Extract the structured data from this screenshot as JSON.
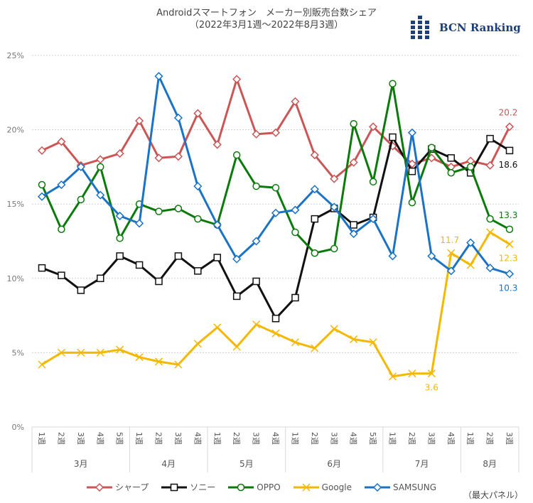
{
  "header": {
    "title_line1": "Androidスマートフォン　メーカー別販売台数シェア",
    "title_line2": "（2022年3月1週〜2022年8月3週）",
    "logo_text": "BCN Ranking",
    "logo_color": "#1d3f7a"
  },
  "footnote": "（最大パネル）",
  "chart_data": {
    "type": "line",
    "title": "Androidスマートフォン　メーカー別販売台数シェア（2022年3月1週〜2022年8月3週）",
    "xlabel": "",
    "ylabel": "",
    "ylim": [
      0,
      25
    ],
    "yticks": [
      "0%",
      "5%",
      "10%",
      "15%",
      "20%",
      "25%"
    ],
    "ytick_values": [
      0,
      5,
      10,
      15,
      20,
      25
    ],
    "grid": "horizontal dotted",
    "legend_position": "bottom",
    "x": [
      "1週",
      "2週",
      "3週",
      "4週",
      "5週",
      "1週",
      "2週",
      "3週",
      "4週",
      "1週",
      "2週",
      "3週",
      "4週",
      "1週",
      "2週",
      "3週",
      "4週",
      "5週",
      "1週",
      "2週",
      "3週",
      "4週",
      "1週",
      "2週",
      "3週"
    ],
    "months": [
      {
        "label": "3月",
        "weeks": 5
      },
      {
        "label": "4月",
        "weeks": 4
      },
      {
        "label": "5月",
        "weeks": 4
      },
      {
        "label": "6月",
        "weeks": 5
      },
      {
        "label": "7月",
        "weeks": 4
      },
      {
        "label": "8月",
        "weeks": 3
      }
    ],
    "series": [
      {
        "name": "シャープ",
        "color": "#cc5555",
        "marker": "diamond",
        "values": [
          18.6,
          19.2,
          17.6,
          18.0,
          18.4,
          20.6,
          18.1,
          18.2,
          21.1,
          19.0,
          23.4,
          19.7,
          19.8,
          21.9,
          18.3,
          16.7,
          17.8,
          20.2,
          18.9,
          17.7,
          18.1,
          17.5,
          17.9,
          17.6,
          20.2
        ]
      },
      {
        "name": "ソニー",
        "color": "#111111",
        "marker": "square",
        "values": [
          10.7,
          10.2,
          9.2,
          10.0,
          11.5,
          10.9,
          9.8,
          11.5,
          10.5,
          11.4,
          8.8,
          9.8,
          7.3,
          8.7,
          14.0,
          14.7,
          13.6,
          14.1,
          19.5,
          17.2,
          18.7,
          18.1,
          17.1,
          19.4,
          18.6
        ]
      },
      {
        "name": "OPPO",
        "color": "#0a7a0a",
        "marker": "circle",
        "values": [
          16.3,
          13.3,
          15.3,
          17.5,
          12.7,
          15.0,
          14.5,
          14.7,
          14.0,
          13.6,
          18.3,
          16.2,
          16.1,
          13.1,
          11.7,
          12.0,
          20.4,
          16.5,
          23.1,
          15.1,
          18.8,
          17.1,
          17.5,
          14.0,
          13.3
        ]
      },
      {
        "name": "Google",
        "color": "#f5b800",
        "marker": "x",
        "values": [
          4.2,
          5.0,
          5.0,
          5.0,
          5.2,
          4.7,
          4.4,
          4.2,
          5.6,
          6.7,
          5.4,
          6.9,
          6.3,
          5.7,
          5.3,
          6.6,
          5.9,
          5.7,
          3.4,
          3.6,
          3.6,
          11.7,
          10.9,
          13.1,
          12.3
        ]
      },
      {
        "name": "SAMSUNG",
        "color": "#1a73c6",
        "marker": "diamond",
        "values": [
          15.5,
          16.3,
          17.5,
          15.6,
          14.2,
          13.7,
          23.6,
          20.8,
          16.2,
          13.6,
          11.3,
          12.5,
          14.4,
          14.6,
          16.0,
          14.8,
          13.0,
          14.0,
          11.5,
          19.8,
          11.5,
          10.5,
          12.4,
          10.7,
          10.3
        ]
      }
    ],
    "annotations": [
      {
        "text": "20.2",
        "series": "シャープ",
        "index": 24,
        "pos": "above"
      },
      {
        "text": "18.6",
        "series": "ソニー",
        "index": 24,
        "pos": "below"
      },
      {
        "text": "13.3",
        "series": "OPPO",
        "index": 24,
        "pos": "above"
      },
      {
        "text": "12.3",
        "series": "Google",
        "index": 24,
        "pos": "below"
      },
      {
        "text": "10.3",
        "series": "SAMSUNG",
        "index": 24,
        "pos": "below"
      },
      {
        "text": "11.7",
        "series": "Google",
        "index": 21,
        "pos": "above"
      },
      {
        "text": "3.6",
        "series": "Google",
        "index": 20,
        "pos": "below"
      }
    ]
  }
}
